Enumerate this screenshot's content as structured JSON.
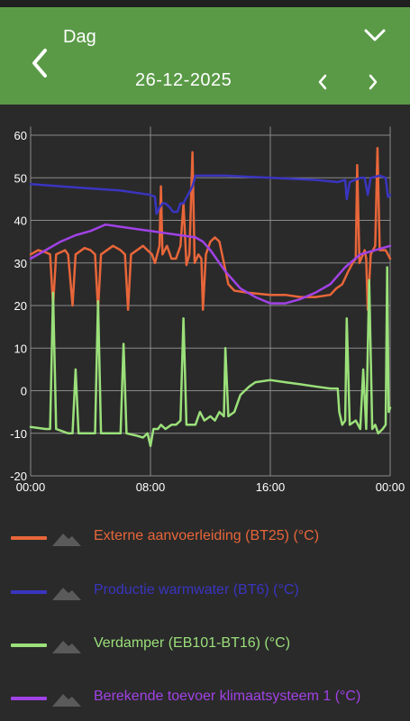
{
  "header": {
    "title": "Dag",
    "date": "26-12-2025"
  },
  "chart_data": {
    "type": "line",
    "ylim": [
      -20,
      62
    ],
    "xlim": [
      0,
      24
    ],
    "yticks": [
      -20,
      -10,
      0,
      10,
      20,
      30,
      40,
      50,
      60
    ],
    "xticks": [
      0,
      8,
      16,
      24
    ],
    "xtick_labels": [
      "00:00",
      "08:00",
      "16:00",
      "00:00"
    ],
    "grid": true,
    "series": [
      {
        "name": "Externe aanvoerleiding (BT25) (°C)",
        "color": "#e8663a",
        "points": [
          [
            0,
            32
          ],
          [
            0.5,
            33
          ],
          [
            1,
            32.5
          ],
          [
            1.3,
            32
          ],
          [
            1.5,
            20
          ],
          [
            1.7,
            32
          ],
          [
            2.3,
            33
          ],
          [
            2.5,
            32
          ],
          [
            2.8,
            20
          ],
          [
            3,
            32
          ],
          [
            3.6,
            33.5
          ],
          [
            4,
            33
          ],
          [
            4.3,
            32
          ],
          [
            4.5,
            19
          ],
          [
            4.7,
            32
          ],
          [
            5.5,
            34
          ],
          [
            6,
            33
          ],
          [
            6.3,
            32
          ],
          [
            6.5,
            19
          ],
          [
            6.7,
            32
          ],
          [
            7.5,
            34
          ],
          [
            7.8,
            33
          ],
          [
            8.1,
            32
          ],
          [
            8.3,
            30
          ],
          [
            8.6,
            34
          ],
          [
            8.7,
            48
          ],
          [
            8.8,
            32
          ],
          [
            9.1,
            34
          ],
          [
            9.4,
            31
          ],
          [
            9.7,
            31
          ],
          [
            10,
            34
          ],
          [
            10.2,
            44
          ],
          [
            10.4,
            29.5
          ],
          [
            10.6,
            32
          ],
          [
            10.8,
            56
          ],
          [
            10.95,
            30
          ],
          [
            11.2,
            32
          ],
          [
            11.4,
            31
          ],
          [
            11.5,
            19
          ],
          [
            11.7,
            32
          ],
          [
            12,
            35
          ],
          [
            12.3,
            36
          ],
          [
            12.6,
            35
          ],
          [
            12.9,
            30
          ],
          [
            13.2,
            25
          ],
          [
            13.6,
            23.5
          ],
          [
            14.5,
            23
          ],
          [
            16,
            22.5
          ],
          [
            17,
            22.5
          ],
          [
            18,
            22
          ],
          [
            19,
            22
          ],
          [
            20,
            22.5
          ],
          [
            20.4,
            24
          ],
          [
            20.8,
            25
          ],
          [
            21.2,
            28
          ],
          [
            21.5,
            30
          ],
          [
            21.7,
            31
          ],
          [
            21.8,
            53
          ],
          [
            21.95,
            30
          ],
          [
            22.3,
            33
          ],
          [
            22.4,
            31
          ],
          [
            22.5,
            19
          ],
          [
            22.7,
            32
          ],
          [
            23,
            34
          ],
          [
            23.15,
            57
          ],
          [
            23.3,
            33
          ],
          [
            23.7,
            33
          ],
          [
            24,
            31
          ]
        ]
      },
      {
        "name": "Productie warmwater (BT6) (°C)",
        "color": "#3a35c0",
        "points": [
          [
            0,
            48.5
          ],
          [
            2,
            48
          ],
          [
            4,
            47.5
          ],
          [
            6,
            47
          ],
          [
            7,
            46.5
          ],
          [
            8,
            46
          ],
          [
            8.3,
            45.5
          ],
          [
            8.4,
            41.5
          ],
          [
            8.6,
            43
          ],
          [
            8.8,
            44
          ],
          [
            9,
            44
          ],
          [
            9.3,
            43
          ],
          [
            9.5,
            42
          ],
          [
            9.8,
            42
          ],
          [
            10,
            44
          ],
          [
            10.2,
            44
          ],
          [
            10.5,
            46
          ],
          [
            10.8,
            48
          ],
          [
            11,
            50.5
          ],
          [
            13,
            50.5
          ],
          [
            16,
            50
          ],
          [
            19,
            49.5
          ],
          [
            20.5,
            49
          ],
          [
            21,
            49.5
          ],
          [
            21.1,
            45
          ],
          [
            21.3,
            49
          ],
          [
            22,
            50
          ],
          [
            22.3,
            50
          ],
          [
            22.5,
            46
          ],
          [
            22.7,
            50
          ],
          [
            23.3,
            50.5
          ],
          [
            23.7,
            50
          ],
          [
            23.85,
            45.5
          ],
          [
            24,
            46
          ]
        ]
      },
      {
        "name": "Verdamper (EB101-BT16) (°C)",
        "color": "#9be07a",
        "points": [
          [
            0,
            -8.5
          ],
          [
            1,
            -9
          ],
          [
            1.3,
            -9
          ],
          [
            1.5,
            23
          ],
          [
            1.7,
            -9
          ],
          [
            2.5,
            -10
          ],
          [
            2.8,
            -10
          ],
          [
            3,
            5
          ],
          [
            3.2,
            -10
          ],
          [
            4,
            -10
          ],
          [
            4.3,
            -10
          ],
          [
            4.5,
            21
          ],
          [
            4.7,
            -10
          ],
          [
            5.5,
            -10
          ],
          [
            6,
            -10
          ],
          [
            6.2,
            11
          ],
          [
            6.4,
            -10
          ],
          [
            7,
            -10.5
          ],
          [
            7.5,
            -11
          ],
          [
            7.8,
            -10
          ],
          [
            8,
            -13
          ],
          [
            8.2,
            -9
          ],
          [
            8.5,
            -9
          ],
          [
            8.7,
            -8
          ],
          [
            9,
            -9
          ],
          [
            9.4,
            -8
          ],
          [
            9.7,
            -8
          ],
          [
            10,
            -7
          ],
          [
            10.2,
            17
          ],
          [
            10.4,
            -8
          ],
          [
            11,
            -8
          ],
          [
            11.3,
            -5
          ],
          [
            11.6,
            -7
          ],
          [
            12,
            -6
          ],
          [
            12.3,
            -7
          ],
          [
            12.6,
            -5
          ],
          [
            12.9,
            -6
          ],
          [
            13,
            10
          ],
          [
            13.2,
            -6
          ],
          [
            13.6,
            -5
          ],
          [
            13.8,
            -3
          ],
          [
            14,
            -1
          ],
          [
            14.3,
            0
          ],
          [
            14.6,
            1
          ],
          [
            15,
            2
          ],
          [
            16,
            2.5
          ],
          [
            17,
            2
          ],
          [
            18,
            1.5
          ],
          [
            19,
            1
          ],
          [
            20,
            0.5
          ],
          [
            20.5,
            0.5
          ],
          [
            20.6,
            -5
          ],
          [
            20.8,
            -8
          ],
          [
            21,
            -7
          ],
          [
            21.1,
            17
          ],
          [
            21.3,
            -8
          ],
          [
            21.7,
            -7
          ],
          [
            22,
            -9
          ],
          [
            22.2,
            5
          ],
          [
            22.4,
            -9
          ],
          [
            22.6,
            26
          ],
          [
            22.8,
            -9
          ],
          [
            23,
            -8
          ],
          [
            23.2,
            -10
          ],
          [
            23.5,
            -9
          ],
          [
            23.7,
            -8
          ],
          [
            23.8,
            29
          ],
          [
            23.9,
            -5
          ],
          [
            24,
            -4
          ]
        ]
      },
      {
        "name": "Berekende toevoer klimaatsysteem 1 (°C)",
        "color": "#a142e6",
        "points": [
          [
            0,
            31
          ],
          [
            1,
            33
          ],
          [
            2,
            35
          ],
          [
            3,
            36.5
          ],
          [
            4,
            37.5
          ],
          [
            5,
            39
          ],
          [
            6,
            38.5
          ],
          [
            7,
            38
          ],
          [
            8,
            37.5
          ],
          [
            9,
            37
          ],
          [
            10,
            36.5
          ],
          [
            11,
            36
          ],
          [
            11.5,
            35
          ],
          [
            12,
            33
          ],
          [
            13,
            28
          ],
          [
            14,
            24
          ],
          [
            15,
            22
          ],
          [
            16,
            20.5
          ],
          [
            17,
            20.5
          ],
          [
            18,
            21.5
          ],
          [
            19,
            23
          ],
          [
            20,
            25
          ],
          [
            21,
            29
          ],
          [
            22,
            32
          ],
          [
            23,
            33
          ],
          [
            24,
            34
          ]
        ]
      }
    ]
  },
  "legend": [
    {
      "label": "Externe aanvoerleiding (BT25) (°C)",
      "color": "#e8663a"
    },
    {
      "label": "Productie warmwater (BT6) (°C)",
      "color": "#3a35c0"
    },
    {
      "label": "Verdamper (EB101-BT16) (°C)",
      "color": "#9be07a"
    },
    {
      "label": "Berekende toevoer klimaatsysteem 1 (°C)",
      "color": "#a142e6"
    }
  ],
  "icons": {
    "back": "chevron-left-icon",
    "dropdown": "chevron-down-icon",
    "prev": "chevron-left-icon",
    "next": "chevron-right-icon",
    "legend_toggle": "mountain-icon"
  }
}
